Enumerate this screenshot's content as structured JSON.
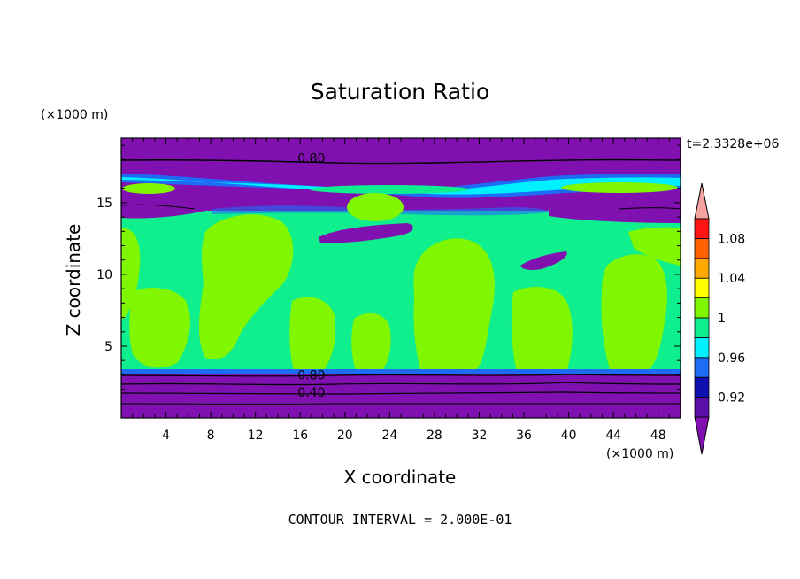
{
  "chart_data": {
    "type": "heatmap",
    "title": "Saturation Ratio",
    "xlabel": "X coordinate",
    "ylabel": "Z coordinate",
    "x_unit": "(×1000 m)",
    "y_unit": "(×1000 m)",
    "time_label": "t=2.3328e+06",
    "footer": "CONTOUR INTERVAL = 2.000E-01",
    "xlim": [
      0,
      50
    ],
    "ylim": [
      0,
      19.5
    ],
    "x_ticks": [
      "4",
      "8",
      "12",
      "16",
      "20",
      "24",
      "28",
      "32",
      "36",
      "40",
      "44",
      "48"
    ],
    "y_ticks": [
      "5",
      "10",
      "15"
    ],
    "contour_labels": [
      {
        "text": "0.80",
        "x": 17,
        "z": 18.1
      },
      {
        "text": "0.80",
        "x": 17,
        "z": 3.0
      },
      {
        "text": "0.40",
        "x": 17,
        "z": 1.8
      }
    ],
    "colorbar": {
      "levels": [
        0.9,
        0.92,
        0.94,
        0.96,
        0.98,
        1.0,
        1.02,
        1.04,
        1.06,
        1.08,
        1.1
      ],
      "tick_labels": [
        "0.92",
        "0.96",
        "1",
        "1.04",
        "1.08"
      ],
      "colors": [
        "#5a10a8",
        "#1010b0",
        "#1e6cf5",
        "#00f0ff",
        "#10ef8e",
        "#80f600",
        "#ffff00",
        "#ffa800",
        "#ff6000",
        "#ff1414"
      ],
      "under_color": "#8010b0",
      "over_color": "#f4a4a0"
    }
  }
}
